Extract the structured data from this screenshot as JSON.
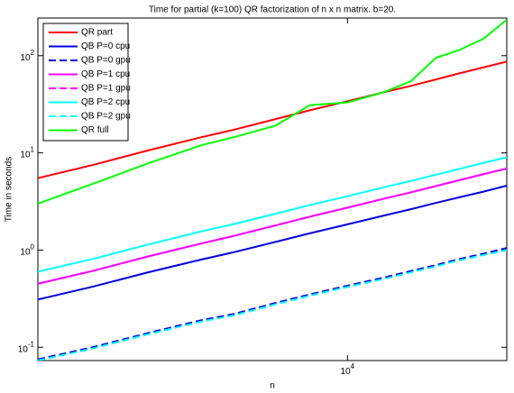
{
  "chart_data": {
    "type": "line",
    "title": "Time for partial (k=100) QR factorization of n x n matrix. b=20.",
    "x_label": "n",
    "y_label": "Time in seconds",
    "x": [
      2600,
      3300,
      4200,
      5300,
      6100,
      7300,
      8500,
      10000,
      11700,
      13200,
      14700,
      16300,
      18100,
      20000
    ],
    "xlim": [
      2600,
      20000
    ],
    "ylim": [
      0.073,
      244
    ],
    "x_log": true,
    "y_log": true,
    "xticks": [
      {
        "value": 10000,
        "label": "10",
        "exponent": "4"
      }
    ],
    "yticks": [
      {
        "value": 0.1,
        "label": "10",
        "exponent": "-1"
      },
      {
        "value": 1,
        "label": "10",
        "exponent": "0"
      },
      {
        "value": 10,
        "label": "10",
        "exponent": "1"
      },
      {
        "value": 100,
        "label": "10",
        "exponent": "2"
      }
    ],
    "legend_position": "upper left",
    "series": [
      {
        "name": "QR part",
        "color": "#ff0000",
        "linestyle": "solid",
        "values": [
          5.5,
          7.5,
          10.6,
          14.5,
          17.3,
          22.2,
          27.5,
          34,
          42,
          49,
          57,
          66,
          76,
          87
        ]
      },
      {
        "name": "QB P=0 cpu",
        "color": "#0000dd",
        "linestyle": "solid",
        "values": [
          0.31,
          0.42,
          0.59,
          0.8,
          0.95,
          1.21,
          1.49,
          1.84,
          2.26,
          2.64,
          3.06,
          3.5,
          4.0,
          4.6
        ]
      },
      {
        "name": "QB P=0 gpu",
        "color": "#0000dd",
        "linestyle": "dashed",
        "values": [
          0.075,
          0.1,
          0.14,
          0.19,
          0.22,
          0.285,
          0.35,
          0.43,
          0.52,
          0.61,
          0.7,
          0.81,
          0.92,
          1.05
        ]
      },
      {
        "name": "QB P=1 cpu",
        "color": "#ff00ff",
        "linestyle": "solid",
        "values": [
          0.45,
          0.61,
          0.86,
          1.17,
          1.4,
          1.79,
          2.21,
          2.73,
          3.37,
          3.93,
          4.56,
          5.25,
          6.05,
          6.9
        ]
      },
      {
        "name": "QB P=1 gpu",
        "color": "#ff00ff",
        "linestyle": "dashed",
        "values": [
          0.45,
          0.61,
          0.86,
          1.17,
          1.4,
          1.79,
          2.21,
          2.73,
          3.37,
          3.93,
          4.56,
          5.25,
          6.05,
          6.9
        ]
      },
      {
        "name": "QB P=2 cpu",
        "color": "#00ffff",
        "linestyle": "solid",
        "values": [
          0.6,
          0.81,
          1.14,
          1.56,
          1.85,
          2.36,
          2.91,
          3.58,
          4.42,
          5.15,
          5.96,
          6.85,
          7.9,
          9.0
        ]
      },
      {
        "name": "QB P=2 gpu",
        "color": "#00ffff",
        "linestyle": "dashed",
        "values": [
          0.073,
          0.097,
          0.136,
          0.184,
          0.213,
          0.276,
          0.34,
          0.417,
          0.504,
          0.59,
          0.68,
          0.786,
          0.89,
          1.0
        ]
      },
      {
        "name": "QR full",
        "color": "#00ff00",
        "linestyle": "solid",
        "values": [
          3,
          4.8,
          7.8,
          12,
          14.5,
          19,
          31,
          33,
          42,
          55,
          95,
          115,
          150,
          235
        ]
      }
    ]
  }
}
